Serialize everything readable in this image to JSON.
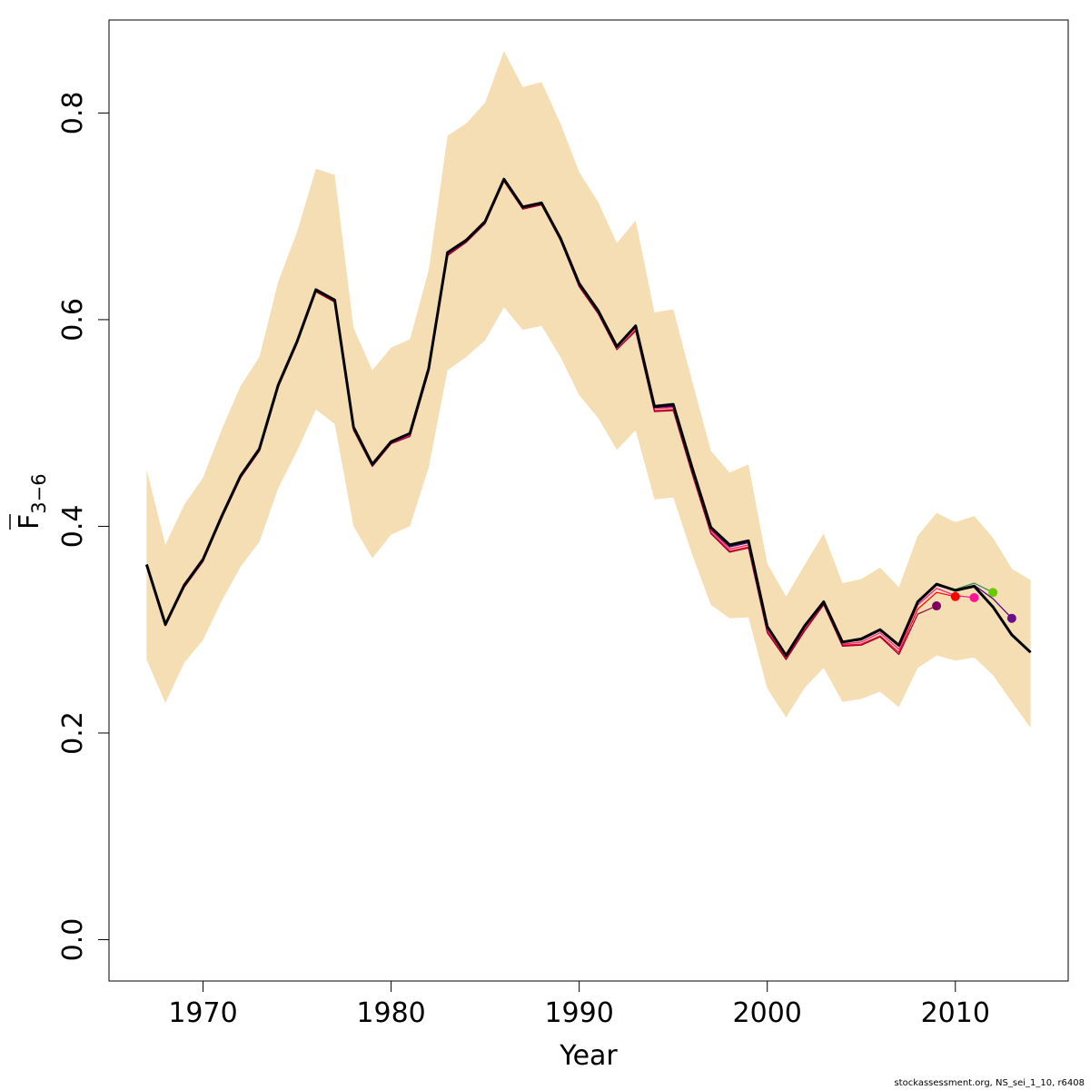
{
  "chart_data": {
    "type": "line",
    "xlabel": "Year",
    "ylabel_main": "F",
    "ylabel_sub": "3−6",
    "xlim": [
      1965,
      2016
    ],
    "ylim": [
      -0.04,
      0.89
    ],
    "x_ticks": [
      1970,
      1980,
      1990,
      2000,
      2010
    ],
    "y_ticks": [
      0.0,
      0.2,
      0.4,
      0.6,
      0.8
    ],
    "y_tick_labels": [
      "0.0",
      "0.2",
      "0.4",
      "0.6",
      "0.8"
    ],
    "grid": false,
    "legend": "none",
    "band_color": "#f5deb3",
    "band": {
      "x": [
        1967,
        1968,
        1969,
        1970,
        1971,
        1972,
        1973,
        1974,
        1975,
        1976,
        1977,
        1978,
        1979,
        1980,
        1981,
        1982,
        1983,
        1984,
        1985,
        1986,
        1987,
        1988,
        1989,
        1990,
        1991,
        1992,
        1993,
        1994,
        1995,
        1996,
        1997,
        1998,
        1999,
        2000,
        2001,
        2002,
        2003,
        2004,
        2005,
        2006,
        2007,
        2008,
        2009,
        2010,
        2011,
        2012,
        2013,
        2014
      ],
      "lower": [
        0.271,
        0.229,
        0.268,
        0.29,
        0.328,
        0.361,
        0.385,
        0.437,
        0.473,
        0.513,
        0.499,
        0.4,
        0.369,
        0.392,
        0.4,
        0.457,
        0.551,
        0.564,
        0.58,
        0.612,
        0.59,
        0.594,
        0.564,
        0.527,
        0.505,
        0.474,
        0.493,
        0.426,
        0.428,
        0.373,
        0.324,
        0.311,
        0.312,
        0.243,
        0.215,
        0.244,
        0.263,
        0.23,
        0.233,
        0.24,
        0.225,
        0.263,
        0.275,
        0.27,
        0.273,
        0.256,
        0.23,
        0.205
      ],
      "upper": [
        0.455,
        0.382,
        0.421,
        0.447,
        0.494,
        0.536,
        0.564,
        0.637,
        0.685,
        0.746,
        0.74,
        0.592,
        0.551,
        0.573,
        0.581,
        0.648,
        0.778,
        0.79,
        0.81,
        0.86,
        0.825,
        0.83,
        0.79,
        0.743,
        0.714,
        0.674,
        0.696,
        0.607,
        0.61,
        0.541,
        0.473,
        0.452,
        0.46,
        0.364,
        0.332,
        0.363,
        0.393,
        0.345,
        0.349,
        0.36,
        0.341,
        0.391,
        0.413,
        0.404,
        0.41,
        0.389,
        0.359,
        0.348
      ]
    },
    "series": [
      {
        "color": "#000000",
        "width": 3,
        "x": [
          1967,
          1968,
          1969,
          1970,
          1971,
          1972,
          1973,
          1974,
          1975,
          1976,
          1977,
          1978,
          1979,
          1980,
          1981,
          1982,
          1983,
          1984,
          1985,
          1986,
          1987,
          1988,
          1989,
          1990,
          1991,
          1992,
          1993,
          1994,
          1995,
          1996,
          1997,
          1998,
          1999,
          2000,
          2001,
          2002,
          2003,
          2004,
          2005,
          2006,
          2007,
          2008,
          2009,
          2010,
          2011,
          2012,
          2013,
          2014
        ],
        "values": [
          0.363,
          0.305,
          0.343,
          0.368,
          0.41,
          0.449,
          0.475,
          0.537,
          0.579,
          0.629,
          0.619,
          0.496,
          0.46,
          0.482,
          0.49,
          0.553,
          0.665,
          0.677,
          0.695,
          0.736,
          0.709,
          0.713,
          0.679,
          0.635,
          0.609,
          0.574,
          0.594,
          0.516,
          0.518,
          0.457,
          0.399,
          0.382,
          0.386,
          0.303,
          0.275,
          0.304,
          0.327,
          0.288,
          0.291,
          0.3,
          0.285,
          0.327,
          0.344,
          0.338,
          0.342,
          0.322,
          0.295,
          0.278
        ],
        "point": null
      },
      {
        "color": "#2e8b57",
        "width": 1.2,
        "x": [
          1967,
          1968,
          1969,
          1970,
          1971,
          1972,
          1973,
          1974,
          1975,
          1976,
          1977,
          1978,
          1979,
          1980,
          1981,
          1982,
          1983,
          1984,
          1985,
          1986,
          1987,
          1988,
          1989,
          1990,
          1991,
          1992,
          1993,
          1994,
          1995,
          1996,
          1997,
          1998,
          1999,
          2000,
          2001,
          2002,
          2003,
          2004,
          2005,
          2006,
          2007,
          2008,
          2009,
          2010,
          2011,
          2012
        ],
        "values": [
          0.363,
          0.305,
          0.343,
          0.368,
          0.41,
          0.449,
          0.475,
          0.537,
          0.579,
          0.629,
          0.619,
          0.496,
          0.46,
          0.482,
          0.49,
          0.553,
          0.665,
          0.677,
          0.695,
          0.736,
          0.709,
          0.713,
          0.679,
          0.635,
          0.61,
          0.575,
          0.595,
          0.517,
          0.519,
          0.456,
          0.398,
          0.381,
          0.385,
          0.302,
          0.275,
          0.303,
          0.327,
          0.288,
          0.29,
          0.3,
          0.284,
          0.327,
          0.344,
          0.339,
          0.345,
          0.336
        ],
        "point": {
          "x": 2012,
          "y": 0.336,
          "color": "#66cc00"
        }
      },
      {
        "color": "#4b0082",
        "width": 1.2,
        "x": [
          1967,
          1968,
          1969,
          1970,
          1971,
          1972,
          1973,
          1974,
          1975,
          1976,
          1977,
          1978,
          1979,
          1980,
          1981,
          1982,
          1983,
          1984,
          1985,
          1986,
          1987,
          1988,
          1989,
          1990,
          1991,
          1992,
          1993,
          1994,
          1995,
          1996,
          1997,
          1998,
          1999,
          2000,
          2001,
          2002,
          2003,
          2004,
          2005,
          2006,
          2007,
          2008,
          2009,
          2010,
          2011,
          2012,
          2013
        ],
        "values": [
          0.363,
          0.305,
          0.343,
          0.368,
          0.41,
          0.449,
          0.475,
          0.537,
          0.579,
          0.629,
          0.619,
          0.496,
          0.46,
          0.482,
          0.49,
          0.553,
          0.665,
          0.677,
          0.695,
          0.736,
          0.709,
          0.713,
          0.679,
          0.635,
          0.609,
          0.574,
          0.593,
          0.515,
          0.516,
          0.455,
          0.397,
          0.38,
          0.384,
          0.302,
          0.274,
          0.303,
          0.327,
          0.288,
          0.29,
          0.299,
          0.284,
          0.326,
          0.343,
          0.338,
          0.343,
          0.33,
          0.311
        ],
        "point": {
          "x": 2013,
          "y": 0.311,
          "color": "#6a0d8a"
        }
      },
      {
        "color": "#ff1493",
        "width": 1.2,
        "x": [
          1967,
          1968,
          1969,
          1970,
          1971,
          1972,
          1973,
          1974,
          1975,
          1976,
          1977,
          1978,
          1979,
          1980,
          1981,
          1982,
          1983,
          1984,
          1985,
          1986,
          1987,
          1988,
          1989,
          1990,
          1991,
          1992,
          1993,
          1994,
          1995,
          1996,
          1997,
          1998,
          1999,
          2000,
          2001,
          2002,
          2003,
          2004,
          2005,
          2006,
          2007,
          2008,
          2009,
          2010,
          2011
        ],
        "values": [
          0.362,
          0.304,
          0.342,
          0.367,
          0.409,
          0.448,
          0.474,
          0.536,
          0.578,
          0.628,
          0.618,
          0.494,
          0.459,
          0.481,
          0.488,
          0.551,
          0.663,
          0.676,
          0.694,
          0.735,
          0.708,
          0.712,
          0.678,
          0.634,
          0.608,
          0.573,
          0.592,
          0.514,
          0.515,
          0.454,
          0.396,
          0.378,
          0.382,
          0.3,
          0.273,
          0.302,
          0.326,
          0.286,
          0.288,
          0.297,
          0.281,
          0.324,
          0.34,
          0.333,
          0.331
        ],
        "point": {
          "x": 2011,
          "y": 0.331,
          "color": "#ff1493"
        }
      },
      {
        "color": "#ff0000",
        "width": 1.2,
        "x": [
          1967,
          1968,
          1969,
          1970,
          1971,
          1972,
          1973,
          1974,
          1975,
          1976,
          1977,
          1978,
          1979,
          1980,
          1981,
          1982,
          1983,
          1984,
          1985,
          1986,
          1987,
          1988,
          1989,
          1990,
          1991,
          1992,
          1993,
          1994,
          1995,
          1996,
          1997,
          1998,
          1999,
          2000,
          2001,
          2002,
          2003,
          2004,
          2005,
          2006,
          2007,
          2008,
          2009,
          2010
        ],
        "values": [
          0.362,
          0.304,
          0.341,
          0.366,
          0.408,
          0.447,
          0.473,
          0.535,
          0.577,
          0.627,
          0.617,
          0.493,
          0.458,
          0.48,
          0.487,
          0.55,
          0.662,
          0.675,
          0.693,
          0.734,
          0.707,
          0.711,
          0.677,
          0.632,
          0.606,
          0.571,
          0.59,
          0.512,
          0.513,
          0.452,
          0.394,
          0.376,
          0.38,
          0.298,
          0.272,
          0.3,
          0.325,
          0.285,
          0.286,
          0.294,
          0.278,
          0.32,
          0.336,
          0.332
        ],
        "point": {
          "x": 2010,
          "y": 0.332,
          "color": "#ff0000"
        }
      },
      {
        "color": "#8b0045",
        "width": 1.2,
        "x": [
          1967,
          1968,
          1969,
          1970,
          1971,
          1972,
          1973,
          1974,
          1975,
          1976,
          1977,
          1978,
          1979,
          1980,
          1981,
          1982,
          1983,
          1984,
          1985,
          1986,
          1987,
          1988,
          1989,
          1990,
          1991,
          1992,
          1993,
          1994,
          1995,
          1996,
          1997,
          1998,
          1999,
          2000,
          2001,
          2002,
          2003,
          2004,
          2005,
          2006,
          2007,
          2008,
          2009
        ],
        "values": [
          0.362,
          0.304,
          0.341,
          0.366,
          0.408,
          0.447,
          0.473,
          0.535,
          0.577,
          0.627,
          0.617,
          0.493,
          0.458,
          0.48,
          0.487,
          0.55,
          0.662,
          0.675,
          0.693,
          0.734,
          0.707,
          0.711,
          0.677,
          0.632,
          0.606,
          0.571,
          0.589,
          0.511,
          0.512,
          0.451,
          0.393,
          0.375,
          0.379,
          0.297,
          0.271,
          0.299,
          0.324,
          0.284,
          0.285,
          0.293,
          0.276,
          0.315,
          0.323
        ],
        "point": {
          "x": 2009,
          "y": 0.323,
          "color": "#800060"
        }
      }
    ]
  },
  "footer": "stockassessment.org, NS_sei_1_10, r6408"
}
